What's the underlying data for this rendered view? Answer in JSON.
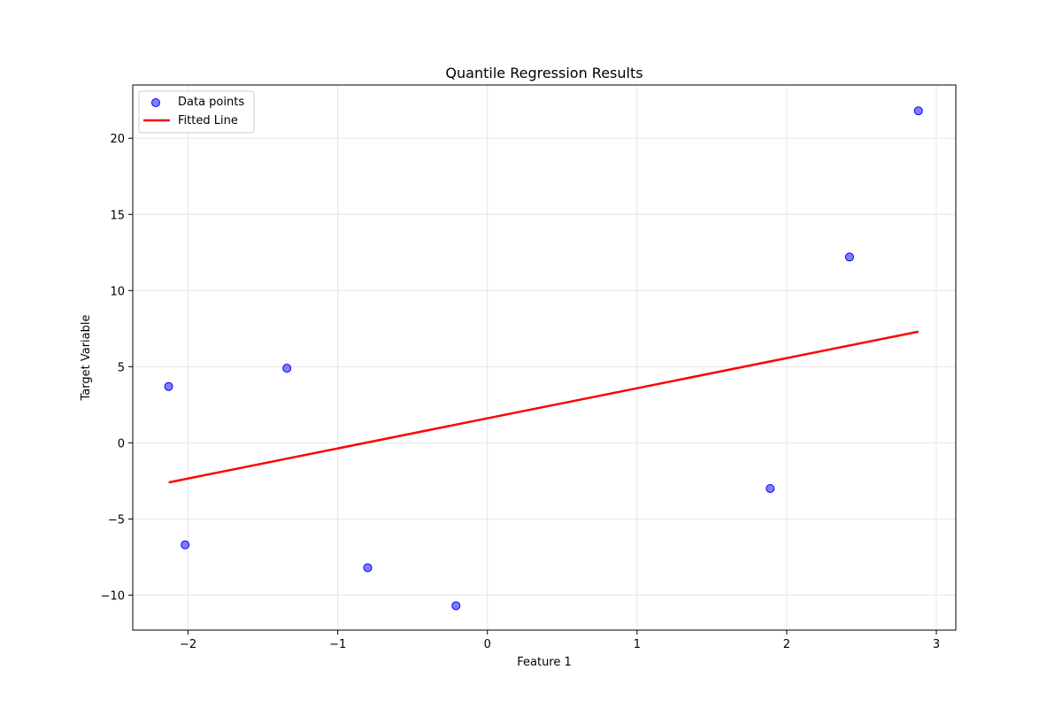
{
  "chart_data": {
    "type": "scatter",
    "title": "Quantile Regression Results",
    "xlabel": "Feature 1",
    "ylabel": "Target Variable",
    "xlim": [
      -2.37,
      3.13
    ],
    "ylim": [
      -12.3,
      23.5
    ],
    "x_ticks": [
      -2,
      -1,
      0,
      1,
      2,
      3
    ],
    "x_tick_labels": [
      "−2",
      "−1",
      "0",
      "1",
      "2",
      "3"
    ],
    "y_ticks": [
      -10,
      -5,
      0,
      5,
      10,
      15,
      20
    ],
    "y_tick_labels": [
      "−10",
      "−5",
      "0",
      "5",
      "10",
      "15",
      "20"
    ],
    "grid": true,
    "legend_position": "top-left",
    "series": [
      {
        "name": "Data points",
        "kind": "scatter",
        "color": "#0000ff",
        "points": [
          {
            "x": -2.13,
            "y": 3.7
          },
          {
            "x": -2.02,
            "y": -6.7
          },
          {
            "x": -1.34,
            "y": 4.9
          },
          {
            "x": -0.8,
            "y": -8.2
          },
          {
            "x": -0.21,
            "y": -10.7
          },
          {
            "x": 1.89,
            "y": -3.0
          },
          {
            "x": 2.42,
            "y": 12.2
          },
          {
            "x": 2.88,
            "y": 21.8
          }
        ]
      },
      {
        "name": "Fitted Line",
        "kind": "line",
        "color": "#ff0000",
        "points": [
          {
            "x": -2.13,
            "y": -2.6
          },
          {
            "x": 2.88,
            "y": 7.3
          }
        ]
      }
    ]
  }
}
